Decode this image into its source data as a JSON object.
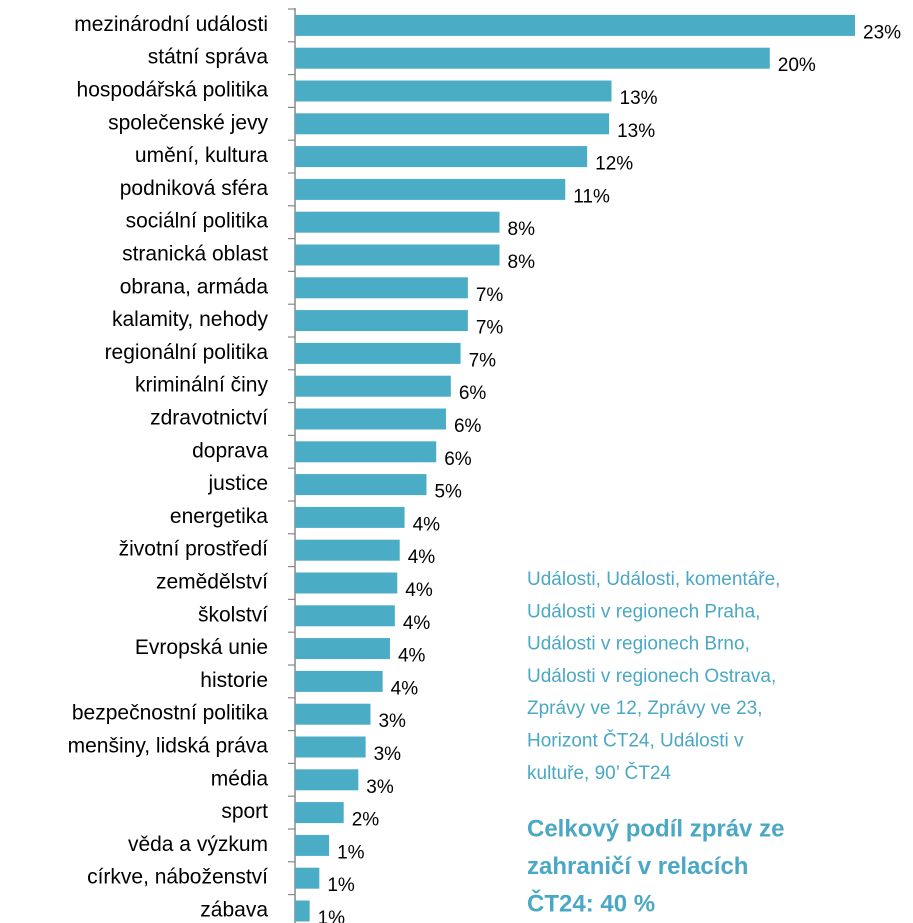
{
  "chart_data": {
    "type": "barh",
    "categories": [
      "mezinárodní události",
      "státní správa",
      "hospodářská politika",
      "společenské jevy",
      "umění, kultura",
      "podniková sféra",
      "sociální politika",
      "stranická oblast",
      "obrana, armáda",
      "kalamity, nehody",
      "regionální politika",
      "kriminální činy",
      "zdravotnictví",
      "doprava",
      "justice",
      "energetika",
      "životní prostředí",
      "zemědělství",
      "školství",
      "Evropská unie",
      "historie",
      "bezpečnostní politika",
      "menšiny, lidská práva",
      "média",
      "sport",
      "věda a výzkum",
      "církve, náboženství",
      "zábava"
    ],
    "values": [
      23,
      19.5,
      13,
      12.9,
      12,
      11.1,
      8.4,
      8.4,
      7.1,
      7.1,
      6.8,
      6.4,
      6.2,
      5.8,
      5.4,
      4.5,
      4.3,
      4.2,
      4.1,
      3.9,
      3.6,
      3.1,
      2.9,
      2.6,
      2,
      1.4,
      1,
      0.6
    ],
    "value_labels": [
      "23%",
      "20%",
      "13%",
      "13%",
      "12%",
      "11%",
      "8%",
      "8%",
      "7%",
      "7%",
      "7%",
      "6%",
      "6%",
      "6%",
      "5%",
      "4%",
      "4%",
      "4%",
      "4%",
      "4%",
      "4%",
      "3%",
      "3%",
      "3%",
      "2%",
      "1%",
      "1%",
      "1%"
    ],
    "color": "#4bacc6",
    "annotation_lines": [
      "Události, Události, komentáře,",
      "Události v regionech Praha,",
      "Události v regionech Brno,",
      "Události v regionech Ostrava,",
      "Zprávy ve 12, Zprávy ve 23,",
      "Horizont ČT24, Události v",
      "kultuře, 90’ ČT24"
    ],
    "summary_lines": [
      "Celkový podíl zpráv ze",
      "zahraničí v relacích",
      "ČT24: 40 %"
    ]
  }
}
